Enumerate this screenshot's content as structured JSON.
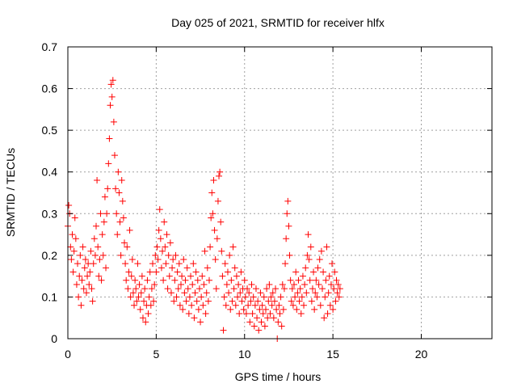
{
  "chart_data": {
    "type": "scatter",
    "title": "Day 025 of 2021, SRMTID for receiver hlfx",
    "xlabel": "GPS time / hours",
    "ylabel": "SRMTID / TECUs",
    "xlim": [
      0,
      24
    ],
    "ylim": [
      0,
      0.7
    ],
    "x_ticks": [
      0,
      5,
      10,
      15,
      20
    ],
    "y_ticks": [
      0,
      0.1,
      0.2,
      0.3,
      0.4,
      0.5,
      0.6,
      0.7
    ],
    "x_tick_labels": [
      "0",
      "5",
      "10",
      "15",
      "20"
    ],
    "y_tick_labels": [
      "0",
      "0.1",
      "0.2",
      "0.3",
      "0.4",
      "0.5",
      "0.6",
      "0.7"
    ],
    "grid": true,
    "marker": "+",
    "color": "#ff0000",
    "series": [
      {
        "name": "SRMTID",
        "points": [
          [
            0.0,
            0.27
          ],
          [
            0.05,
            0.32
          ],
          [
            0.1,
            0.3
          ],
          [
            0.15,
            0.22
          ],
          [
            0.2,
            0.19
          ],
          [
            0.25,
            0.25
          ],
          [
            0.3,
            0.16
          ],
          [
            0.35,
            0.21
          ],
          [
            0.4,
            0.29
          ],
          [
            0.45,
            0.24
          ],
          [
            0.5,
            0.13
          ],
          [
            0.55,
            0.18
          ],
          [
            0.6,
            0.1
          ],
          [
            0.65,
            0.15
          ],
          [
            0.7,
            0.2
          ],
          [
            0.75,
            0.08
          ],
          [
            0.8,
            0.14
          ],
          [
            0.85,
            0.22
          ],
          [
            0.9,
            0.12
          ],
          [
            0.95,
            0.17
          ],
          [
            1.0,
            0.19
          ],
          [
            1.05,
            0.11
          ],
          [
            1.1,
            0.15
          ],
          [
            1.15,
            0.18
          ],
          [
            1.2,
            0.13
          ],
          [
            1.25,
            0.16
          ],
          [
            1.3,
            0.21
          ],
          [
            1.35,
            0.12
          ],
          [
            1.4,
            0.09
          ],
          [
            1.45,
            0.18
          ],
          [
            1.5,
            0.24
          ],
          [
            1.55,
            0.2
          ],
          [
            1.6,
            0.27
          ],
          [
            1.65,
            0.38
          ],
          [
            1.7,
            0.22
          ],
          [
            1.75,
            0.15
          ],
          [
            1.8,
            0.19
          ],
          [
            1.85,
            0.3
          ],
          [
            1.9,
            0.14
          ],
          [
            1.95,
            0.25
          ],
          [
            2.0,
            0.2
          ],
          [
            2.05,
            0.28
          ],
          [
            2.1,
            0.34
          ],
          [
            2.15,
            0.17
          ],
          [
            2.2,
            0.3
          ],
          [
            2.25,
            0.36
          ],
          [
            2.3,
            0.42
          ],
          [
            2.35,
            0.48
          ],
          [
            2.4,
            0.56
          ],
          [
            2.45,
            0.61
          ],
          [
            2.5,
            0.58
          ],
          [
            2.55,
            0.62
          ],
          [
            2.6,
            0.52
          ],
          [
            2.65,
            0.44
          ],
          [
            2.7,
            0.36
          ],
          [
            2.75,
            0.3
          ],
          [
            2.8,
            0.25
          ],
          [
            2.85,
            0.4
          ],
          [
            2.9,
            0.35
          ],
          [
            2.95,
            0.28
          ],
          [
            3.0,
            0.2
          ],
          [
            3.05,
            0.38
          ],
          [
            3.1,
            0.33
          ],
          [
            3.15,
            0.29
          ],
          [
            3.2,
            0.23
          ],
          [
            3.25,
            0.18
          ],
          [
            3.3,
            0.14
          ],
          [
            3.35,
            0.22
          ],
          [
            3.4,
            0.12
          ],
          [
            3.45,
            0.16
          ],
          [
            3.5,
            0.26
          ],
          [
            3.55,
            0.1
          ],
          [
            3.6,
            0.15
          ],
          [
            3.65,
            0.19
          ],
          [
            3.7,
            0.11
          ],
          [
            3.75,
            0.08
          ],
          [
            3.8,
            0.14
          ],
          [
            3.85,
            0.12
          ],
          [
            3.9,
            0.09
          ],
          [
            3.95,
            0.18
          ],
          [
            4.0,
            0.1
          ],
          [
            4.05,
            0.13
          ],
          [
            4.1,
            0.07
          ],
          [
            4.15,
            0.11
          ],
          [
            4.2,
            0.15
          ],
          [
            4.25,
            0.05
          ],
          [
            4.3,
            0.09
          ],
          [
            4.35,
            0.12
          ],
          [
            4.4,
            0.04
          ],
          [
            4.45,
            0.08
          ],
          [
            4.5,
            0.14
          ],
          [
            4.55,
            0.06
          ],
          [
            4.6,
            0.1
          ],
          [
            4.65,
            0.16
          ],
          [
            4.7,
            0.08
          ],
          [
            4.75,
            0.12
          ],
          [
            4.8,
            0.18
          ],
          [
            4.85,
            0.09
          ],
          [
            4.9,
            0.13
          ],
          [
            4.95,
            0.2
          ],
          [
            5.0,
            0.16
          ],
          [
            5.05,
            0.22
          ],
          [
            5.1,
            0.19
          ],
          [
            5.15,
            0.26
          ],
          [
            5.2,
            0.31
          ],
          [
            5.25,
            0.24
          ],
          [
            5.3,
            0.17
          ],
          [
            5.35,
            0.21
          ],
          [
            5.4,
            0.14
          ],
          [
            5.45,
            0.28
          ],
          [
            5.5,
            0.22
          ],
          [
            5.55,
            0.18
          ],
          [
            5.6,
            0.25
          ],
          [
            5.65,
            0.12
          ],
          [
            5.7,
            0.2
          ],
          [
            5.75,
            0.15
          ],
          [
            5.8,
            0.23
          ],
          [
            5.85,
            0.11
          ],
          [
            5.9,
            0.17
          ],
          [
            5.95,
            0.19
          ],
          [
            6.0,
            0.09
          ],
          [
            6.05,
            0.14
          ],
          [
            6.1,
            0.2
          ],
          [
            6.15,
            0.1
          ],
          [
            6.2,
            0.16
          ],
          [
            6.25,
            0.12
          ],
          [
            6.3,
            0.18
          ],
          [
            6.35,
            0.08
          ],
          [
            6.4,
            0.13
          ],
          [
            6.45,
            0.15
          ],
          [
            6.5,
            0.07
          ],
          [
            6.55,
            0.19
          ],
          [
            6.6,
            0.11
          ],
          [
            6.65,
            0.14
          ],
          [
            6.7,
            0.09
          ],
          [
            6.75,
            0.17
          ],
          [
            6.8,
            0.12
          ],
          [
            6.85,
            0.06
          ],
          [
            6.9,
            0.1
          ],
          [
            6.95,
            0.15
          ],
          [
            7.0,
            0.08
          ],
          [
            7.05,
            0.13
          ],
          [
            7.1,
            0.18
          ],
          [
            7.15,
            0.05
          ],
          [
            7.2,
            0.11
          ],
          [
            7.25,
            0.16
          ],
          [
            7.3,
            0.09
          ],
          [
            7.35,
            0.14
          ],
          [
            7.4,
            0.07
          ],
          [
            7.45,
            0.12
          ],
          [
            7.5,
            0.04
          ],
          [
            7.55,
            0.1
          ],
          [
            7.6,
            0.15
          ],
          [
            7.65,
            0.08
          ],
          [
            7.7,
            0.13
          ],
          [
            7.75,
            0.21
          ],
          [
            7.8,
            0.06
          ],
          [
            7.85,
            0.11
          ],
          [
            7.9,
            0.17
          ],
          [
            7.95,
            0.09
          ],
          [
            8.0,
            0.14
          ],
          [
            8.05,
            0.22
          ],
          [
            8.1,
            0.29
          ],
          [
            8.15,
            0.35
          ],
          [
            8.2,
            0.3
          ],
          [
            8.25,
            0.38
          ],
          [
            8.3,
            0.26
          ],
          [
            8.35,
            0.19
          ],
          [
            8.4,
            0.12
          ],
          [
            8.45,
            0.24
          ],
          [
            8.5,
            0.33
          ],
          [
            8.55,
            0.39
          ],
          [
            8.6,
            0.4
          ],
          [
            8.65,
            0.28
          ],
          [
            8.7,
            0.21
          ],
          [
            8.75,
            0.15
          ],
          [
            8.8,
            0.02
          ],
          [
            8.85,
            0.1
          ],
          [
            8.9,
            0.18
          ],
          [
            8.95,
            0.08
          ],
          [
            9.0,
            0.13
          ],
          [
            9.05,
            0.16
          ],
          [
            9.1,
            0.11
          ],
          [
            9.15,
            0.2
          ],
          [
            9.2,
            0.07
          ],
          [
            9.25,
            0.14
          ],
          [
            9.3,
            0.09
          ],
          [
            9.35,
            0.22
          ],
          [
            9.4,
            0.12
          ],
          [
            9.45,
            0.17
          ],
          [
            9.5,
            0.08
          ],
          [
            9.55,
            0.15
          ],
          [
            9.6,
            0.1
          ],
          [
            9.65,
            0.13
          ],
          [
            9.7,
            0.06
          ],
          [
            9.75,
            0.11
          ],
          [
            9.8,
            0.16
          ],
          [
            9.85,
            0.09
          ],
          [
            9.9,
            0.12
          ],
          [
            9.95,
            0.07
          ],
          [
            10.0,
            0.14
          ],
          [
            10.05,
            0.1
          ],
          [
            10.1,
            0.06
          ],
          [
            10.15,
            0.12
          ],
          [
            10.2,
            0.08
          ],
          [
            10.25,
            0.11
          ],
          [
            10.3,
            0.04
          ],
          [
            10.35,
            0.09
          ],
          [
            10.4,
            0.13
          ],
          [
            10.45,
            0.06
          ],
          [
            10.5,
            0.1
          ],
          [
            10.55,
            0.03
          ],
          [
            10.6,
            0.08
          ],
          [
            10.65,
            0.12
          ],
          [
            10.7,
            0.05
          ],
          [
            10.75,
            0.09
          ],
          [
            10.8,
            0.02
          ],
          [
            10.85,
            0.07
          ],
          [
            10.9,
            0.11
          ],
          [
            10.95,
            0.04
          ],
          [
            11.0,
            0.08
          ],
          [
            11.05,
            0.06
          ],
          [
            11.1,
            0.1
          ],
          [
            11.15,
            0.03
          ],
          [
            11.2,
            0.07
          ],
          [
            11.25,
            0.12
          ],
          [
            11.3,
            0.05
          ],
          [
            11.35,
            0.09
          ],
          [
            11.4,
            0.13
          ],
          [
            11.45,
            0.06
          ],
          [
            11.5,
            0.1
          ],
          [
            11.55,
            0.08
          ],
          [
            11.6,
            0.11
          ],
          [
            11.65,
            0.05
          ],
          [
            11.7,
            0.09
          ],
          [
            11.75,
            0.12
          ],
          [
            11.8,
            0.07
          ],
          [
            11.85,
            0.0
          ],
          [
            11.9,
            0.04
          ],
          [
            11.95,
            0.08
          ],
          [
            12.0,
            0.06
          ],
          [
            12.05,
            0.1
          ],
          [
            12.1,
            0.03
          ],
          [
            12.15,
            0.13
          ],
          [
            12.2,
            0.07
          ],
          [
            12.25,
            0.12
          ],
          [
            12.3,
            0.18
          ],
          [
            12.35,
            0.24
          ],
          [
            12.4,
            0.3
          ],
          [
            12.45,
            0.33
          ],
          [
            12.5,
            0.27
          ],
          [
            12.55,
            0.2
          ],
          [
            12.6,
            0.14
          ],
          [
            12.65,
            0.09
          ],
          [
            12.7,
            0.12
          ],
          [
            12.75,
            0.08
          ],
          [
            12.8,
            0.13
          ],
          [
            12.85,
            0.1
          ],
          [
            12.9,
            0.16
          ],
          [
            12.95,
            0.07
          ],
          [
            13.0,
            0.11
          ],
          [
            13.05,
            0.14
          ],
          [
            13.1,
            0.09
          ],
          [
            13.15,
            0.12
          ],
          [
            13.2,
            0.06
          ],
          [
            13.25,
            0.1
          ],
          [
            13.3,
            0.15
          ],
          [
            13.35,
            0.08
          ],
          [
            13.4,
            0.13
          ],
          [
            13.45,
            0.17
          ],
          [
            13.5,
            0.11
          ],
          [
            13.55,
            0.2
          ],
          [
            13.6,
            0.25
          ],
          [
            13.65,
            0.19
          ],
          [
            13.7,
            0.14
          ],
          [
            13.75,
            0.22
          ],
          [
            13.8,
            0.09
          ],
          [
            13.85,
            0.12
          ],
          [
            13.9,
            0.16
          ],
          [
            13.95,
            0.07
          ],
          [
            14.0,
            0.11
          ],
          [
            14.05,
            0.14
          ],
          [
            14.1,
            0.1
          ],
          [
            14.15,
            0.17
          ],
          [
            14.2,
            0.13
          ],
          [
            14.25,
            0.19
          ],
          [
            14.3,
            0.08
          ],
          [
            14.35,
            0.21
          ],
          [
            14.4,
            0.12
          ],
          [
            14.45,
            0.16
          ],
          [
            14.5,
            0.05
          ],
          [
            14.55,
            0.1
          ],
          [
            14.6,
            0.14
          ],
          [
            14.65,
            0.22
          ],
          [
            14.7,
            0.06
          ],
          [
            14.75,
            0.11
          ],
          [
            14.8,
            0.15
          ],
          [
            14.85,
            0.08
          ],
          [
            14.9,
            0.13
          ],
          [
            14.95,
            0.18
          ],
          [
            15.0,
            0.07
          ],
          [
            15.05,
            0.12
          ],
          [
            15.1,
            0.16
          ],
          [
            15.15,
            0.09
          ],
          [
            15.2,
            0.14
          ],
          [
            15.25,
            0.11
          ],
          [
            15.3,
            0.13
          ],
          [
            15.35,
            0.1
          ],
          [
            15.4,
            0.12
          ]
        ]
      }
    ]
  }
}
